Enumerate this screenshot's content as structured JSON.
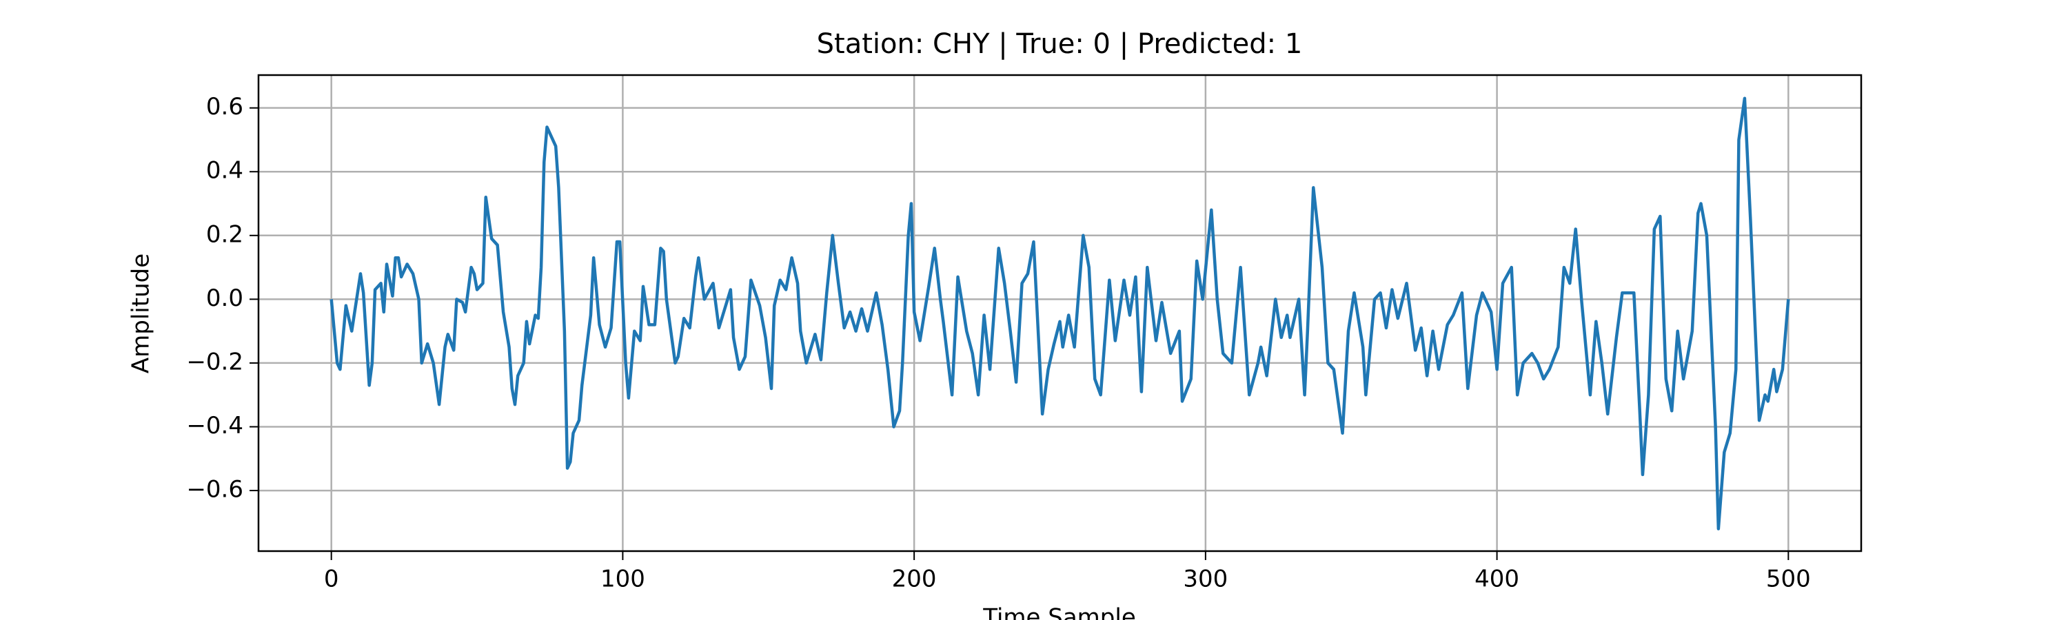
{
  "chart_data": {
    "type": "line",
    "title": "Station: CHY | True: 0 | Predicted: 1",
    "x_label": "Time Sample",
    "y_label": "Amplitude",
    "x": [
      0,
      2,
      3,
      5,
      7,
      10,
      11,
      13,
      14,
      15,
      17,
      18,
      19,
      21,
      22,
      23,
      24,
      26,
      28,
      30,
      31,
      33,
      35,
      37,
      39,
      40,
      42,
      43,
      45,
      46,
      48,
      49,
      50,
      52,
      53,
      55,
      57,
      59,
      61,
      62,
      63,
      64,
      66,
      67,
      68,
      70,
      71,
      72,
      73,
      74,
      76,
      77,
      78,
      80,
      81,
      82,
      83,
      85,
      86,
      89,
      90,
      92,
      94,
      96,
      98,
      99,
      101,
      102,
      104,
      106,
      107,
      109,
      111,
      113,
      114,
      115,
      118,
      119,
      121,
      123,
      125,
      126,
      128,
      131,
      133,
      137,
      138,
      140,
      142,
      144,
      147,
      149,
      151,
      152,
      154,
      156,
      158,
      160,
      161,
      163,
      166,
      168,
      170,
      172,
      174,
      176,
      178,
      180,
      182,
      184,
      187,
      189,
      191,
      193,
      195,
      196,
      198,
      199,
      200,
      202,
      205,
      207,
      209,
      210,
      213,
      215,
      218,
      220,
      222,
      224,
      226,
      229,
      231,
      233,
      235,
      237,
      239,
      241,
      242,
      244,
      246,
      248,
      250,
      251,
      253,
      255,
      258,
      260,
      262,
      264,
      267,
      269,
      272,
      274,
      276,
      278,
      280,
      283,
      285,
      288,
      291,
      292,
      295,
      297,
      299,
      302,
      304,
      306,
      309,
      312,
      315,
      318,
      319,
      321,
      324,
      326,
      328,
      329,
      332,
      334,
      335,
      337,
      340,
      342,
      344,
      347,
      349,
      351,
      354,
      355,
      358,
      360,
      362,
      364,
      366,
      369,
      372,
      374,
      376,
      378,
      380,
      383,
      385,
      388,
      390,
      393,
      395,
      398,
      400,
      402,
      405,
      407,
      409,
      412,
      414,
      416,
      418,
      421,
      423,
      425,
      427,
      429,
      432,
      434,
      436,
      438,
      441,
      443,
      445,
      447,
      449,
      450,
      452,
      454,
      456,
      458,
      460,
      462,
      464,
      467,
      469,
      470,
      472,
      475,
      476,
      478,
      480,
      482,
      483,
      485,
      487,
      490,
      492,
      493,
      495,
      496,
      498,
      500
    ],
    "series": [
      {
        "color": "#1f77b4",
        "values": [
          0,
          -0.2,
          -0.22,
          -0.02,
          -0.1,
          0.08,
          0.02,
          -0.27,
          -0.2,
          0.03,
          0.05,
          -0.04,
          0.11,
          0.01,
          0.13,
          0.13,
          0.07,
          0.11,
          0.08,
          0,
          -0.2,
          -0.14,
          -0.2,
          -0.33,
          -0.15,
          -0.11,
          -0.16,
          0,
          -0.01,
          -0.04,
          0.1,
          0.08,
          0.03,
          0.05,
          0.32,
          0.19,
          0.17,
          -0.04,
          -0.15,
          -0.28,
          -0.33,
          -0.24,
          -0.2,
          -0.07,
          -0.14,
          -0.05,
          -0.06,
          0.1,
          0.43,
          0.54,
          0.5,
          0.48,
          0.35,
          -0.1,
          -0.53,
          -0.51,
          -0.42,
          -0.38,
          -0.27,
          -0.05,
          0.13,
          -0.08,
          -0.15,
          -0.09,
          0.18,
          0.18,
          -0.2,
          -0.31,
          -0.1,
          -0.13,
          0.04,
          -0.08,
          -0.08,
          0.16,
          0.15,
          0,
          -0.2,
          -0.18,
          -0.06,
          -0.09,
          0.07,
          0.13,
          0,
          0.05,
          -0.09,
          0.03,
          -0.12,
          -0.22,
          -0.18,
          0.06,
          -0.02,
          -0.12,
          -0.28,
          -0.02,
          0.06,
          0.03,
          0.13,
          0.05,
          -0.1,
          -0.2,
          -0.11,
          -0.19,
          0.02,
          0.2,
          0.05,
          -0.09,
          -0.04,
          -0.1,
          -0.03,
          -0.1,
          0.02,
          -0.08,
          -0.22,
          -0.4,
          -0.35,
          -0.2,
          0.2,
          0.3,
          -0.04,
          -0.13,
          0.04,
          0.16,
          0,
          -0.07,
          -0.3,
          0.07,
          -0.1,
          -0.17,
          -0.3,
          -0.05,
          -0.22,
          0.16,
          0.05,
          -0.1,
          -0.26,
          0.05,
          0.08,
          0.18,
          0,
          -0.36,
          -0.22,
          -0.14,
          -0.07,
          -0.15,
          -0.05,
          -0.15,
          0.2,
          0.1,
          -0.25,
          -0.3,
          0.06,
          -0.13,
          0.06,
          -0.05,
          0.07,
          -0.29,
          0.1,
          -0.13,
          -0.01,
          -0.17,
          -0.1,
          -0.32,
          -0.25,
          0.12,
          0,
          0.28,
          0,
          -0.17,
          -0.2,
          0.1,
          -0.3,
          -0.2,
          -0.15,
          -0.24,
          0,
          -0.12,
          -0.05,
          -0.12,
          0,
          -0.3,
          -0.1,
          0.35,
          0.1,
          -0.2,
          -0.22,
          -0.42,
          -0.1,
          0.02,
          -0.15,
          -0.3,
          0,
          0.02,
          -0.09,
          0.03,
          -0.06,
          0.05,
          -0.16,
          -0.09,
          -0.24,
          -0.1,
          -0.22,
          -0.08,
          -0.05,
          0.02,
          -0.28,
          -0.05,
          0.02,
          -0.04,
          -0.22,
          0.05,
          0.1,
          -0.3,
          -0.2,
          -0.17,
          -0.2,
          -0.25,
          -0.22,
          -0.15,
          0.1,
          0.05,
          0.22,
          0,
          -0.3,
          -0.07,
          -0.2,
          -0.36,
          -0.12,
          0.02,
          0.02,
          0.02,
          -0.35,
          -0.55,
          -0.3,
          0.22,
          0.26,
          -0.25,
          -0.35,
          -0.1,
          -0.25,
          -0.1,
          0.27,
          0.3,
          0.2,
          -0.4,
          -0.72,
          -0.48,
          -0.42,
          -0.22,
          0.5,
          0.63,
          0.25,
          -0.38,
          -0.3,
          -0.32,
          -0.22,
          -0.29,
          -0.22,
          0
        ]
      }
    ],
    "xlim": [
      -25,
      525
    ],
    "ylim": [
      -0.79,
      0.703
    ],
    "xticks": [
      0,
      100,
      200,
      300,
      400,
      500
    ],
    "yticks": [
      {
        "value": -0.6,
        "label": "−0.6"
      },
      {
        "value": -0.4,
        "label": "−0.4"
      },
      {
        "value": -0.2,
        "label": "−0.2"
      },
      {
        "value": 0,
        "label": "0.0"
      },
      0.2,
      0.4,
      0.6
    ],
    "grid": true
  }
}
